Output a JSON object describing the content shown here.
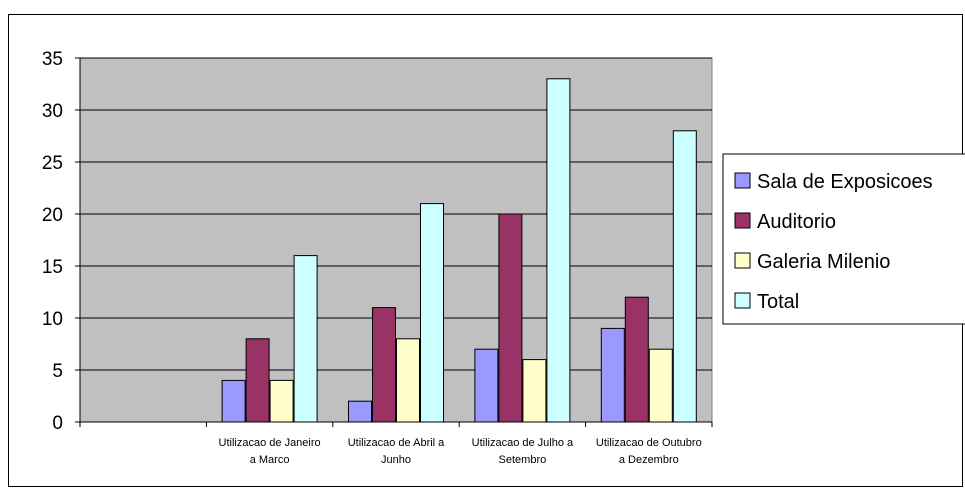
{
  "chart_data": {
    "type": "bar",
    "categories": [
      "",
      "Utilizacao de Janeiro a Marco",
      "Utilizacao de Abril a Junho",
      "Utilizacao de Julho a Setembro",
      "Utilizacao de Outubro a Dezembro"
    ],
    "category_lines": [
      [
        "",
        ""
      ],
      [
        "Utilizacao de Janeiro",
        "a Marco"
      ],
      [
        "Utilizacao de Abril a",
        "Junho"
      ],
      [
        "Utilizacao de Julho a",
        "Setembro"
      ],
      [
        "Utilizacao de Outubro",
        "a Dezembro"
      ]
    ],
    "series": [
      {
        "name": "Sala de Exposicoes",
        "color": "#9999FF",
        "values": [
          null,
          4,
          2,
          7,
          9
        ]
      },
      {
        "name": "Auditorio",
        "color": "#993366",
        "values": [
          null,
          8,
          11,
          20,
          12
        ]
      },
      {
        "name": "Galeria Milenio",
        "color": "#FFFFCC",
        "values": [
          null,
          4,
          8,
          6,
          7
        ]
      },
      {
        "name": "Total",
        "color": "#CCFFFF",
        "values": [
          null,
          16,
          21,
          33,
          28
        ]
      }
    ],
    "ylim": [
      0,
      35
    ],
    "yticks": [
      0,
      5,
      10,
      15,
      20,
      25,
      30,
      35
    ],
    "plot_background": "#C0C0C0",
    "grid": true,
    "legend_position": "right",
    "title": "",
    "xlabel": "",
    "ylabel": ""
  }
}
